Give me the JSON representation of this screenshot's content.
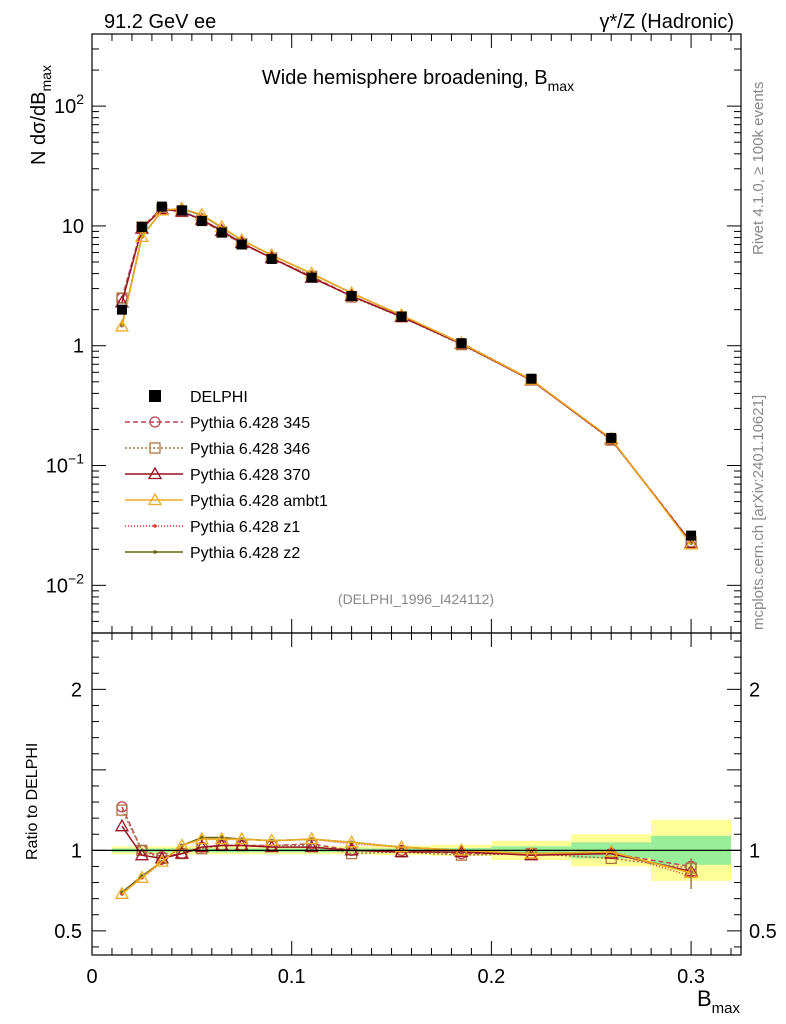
{
  "header": {
    "left": "91.2 GeV ee",
    "right": "γ*/Z (Hadronic)"
  },
  "side_labels": {
    "rivet": "Rivet 4.1.0, ≥ 100k events",
    "mcplots": "mcplots.cern.ch [arXiv:2401.10621]"
  },
  "chart_data": [
    {
      "type": "line",
      "title": "Wide hemisphere broadening, B",
      "title_sub": "max",
      "ylabel": "N  dσ/dB",
      "ylabel_sub": "max",
      "yscale": "log",
      "xlim": [
        0,
        0.325
      ],
      "ylim": [
        0.004,
        400
      ],
      "y_ticks": [
        {
          "v": 0.01,
          "base": "10",
          "exp": "−2"
        },
        {
          "v": 0.1,
          "base": "10",
          "exp": "−1"
        },
        {
          "v": 1,
          "base": "1",
          "exp": ""
        },
        {
          "v": 10,
          "base": "10",
          "exp": ""
        },
        {
          "v": 100,
          "base": "10",
          "exp": "2"
        }
      ],
      "watermark": "(DELPHI_1996_I424112)",
      "legend": [
        "DELPHI",
        "Pythia 6.428 345",
        "Pythia 6.428 346",
        "Pythia 6.428 370",
        "Pythia 6.428 ambt1",
        "Pythia 6.428 z1",
        "Pythia 6.428 z2"
      ],
      "x": [
        0.015,
        0.025,
        0.035,
        0.045,
        0.055,
        0.065,
        0.075,
        0.09,
        0.11,
        0.13,
        0.155,
        0.185,
        0.22,
        0.26,
        0.3
      ],
      "data": {
        "name": "DELPHI",
        "values": [
          2.0,
          9.8,
          14.5,
          13.5,
          11.0,
          8.8,
          7.0,
          5.3,
          3.7,
          2.6,
          1.75,
          1.05,
          0.53,
          0.17,
          0.026
        ]
      },
      "series": [
        {
          "name": "Pythia 6.428 345",
          "values": [
            2.5,
            9.8,
            14.0,
            13.3,
            11.2,
            8.9,
            7.1,
            5.4,
            3.8,
            2.6,
            1.75,
            1.03,
            0.52,
            0.166,
            0.023
          ]
        },
        {
          "name": "Pythia 6.428 346",
          "values": [
            2.5,
            9.8,
            13.8,
            13.2,
            11.1,
            8.9,
            7.1,
            5.4,
            3.8,
            2.55,
            1.74,
            1.02,
            0.52,
            0.163,
            0.023
          ]
        },
        {
          "name": "Pythia 6.428 370",
          "values": [
            2.3,
            9.5,
            13.8,
            13.2,
            11.3,
            9.1,
            7.2,
            5.4,
            3.7,
            2.6,
            1.74,
            1.04,
            0.515,
            0.166,
            0.0225
          ]
        },
        {
          "name": "Pythia 6.428 ambt1",
          "values": [
            1.45,
            8.1,
            13.5,
            14.0,
            12.4,
            9.8,
            7.6,
            5.7,
            4.0,
            2.75,
            1.8,
            1.05,
            0.52,
            0.168,
            0.022
          ]
        },
        {
          "name": "Pythia 6.428 z1",
          "values": [
            1.47,
            8.1,
            13.3,
            13.9,
            12.3,
            9.7,
            7.6,
            5.7,
            4.0,
            2.75,
            1.79,
            1.06,
            0.52,
            0.165,
            0.0225
          ]
        },
        {
          "name": "Pythia 6.428 z2",
          "values": [
            1.48,
            8.2,
            13.4,
            13.9,
            12.3,
            9.7,
            7.6,
            5.7,
            4.0,
            2.75,
            1.79,
            1.05,
            0.52,
            0.166,
            0.0225
          ]
        }
      ]
    },
    {
      "type": "line",
      "ylabel": "Ratio to DELPHI",
      "ylim": [
        0.35,
        2.35
      ],
      "xlabel": "B",
      "xlabel_sub": "max",
      "x_ticks": [
        {
          "v": 0,
          "label": "0"
        },
        {
          "v": 0.1,
          "label": "0.1"
        },
        {
          "v": 0.2,
          "label": "0.2"
        },
        {
          "v": 0.3,
          "label": "0.3"
        }
      ],
      "y_ticks": [
        {
          "v": 0.5,
          "label": "0.5"
        },
        {
          "v": 1,
          "label": "1"
        },
        {
          "v": 2,
          "label": "2"
        }
      ],
      "bands": [
        {
          "x0": 0.01,
          "x1": 0.02,
          "inner": 0.012,
          "outer": 0.025
        },
        {
          "x0": 0.02,
          "x1": 0.03,
          "inner": 0.012,
          "outer": 0.025
        },
        {
          "x0": 0.03,
          "x1": 0.04,
          "inner": 0.012,
          "outer": 0.025
        },
        {
          "x0": 0.04,
          "x1": 0.05,
          "inner": 0.012,
          "outer": 0.025
        },
        {
          "x0": 0.05,
          "x1": 0.06,
          "inner": 0.012,
          "outer": 0.025
        },
        {
          "x0": 0.06,
          "x1": 0.07,
          "inner": 0.012,
          "outer": 0.025
        },
        {
          "x0": 0.07,
          "x1": 0.08,
          "inner": 0.012,
          "outer": 0.025
        },
        {
          "x0": 0.08,
          "x1": 0.1,
          "inner": 0.012,
          "outer": 0.025
        },
        {
          "x0": 0.1,
          "x1": 0.12,
          "inner": 0.012,
          "outer": 0.025
        },
        {
          "x0": 0.12,
          "x1": 0.14,
          "inner": 0.012,
          "outer": 0.025
        },
        {
          "x0": 0.14,
          "x1": 0.17,
          "inner": 0.012,
          "outer": 0.03
        },
        {
          "x0": 0.17,
          "x1": 0.2,
          "inner": 0.015,
          "outer": 0.035
        },
        {
          "x0": 0.2,
          "x1": 0.24,
          "inner": 0.025,
          "outer": 0.06
        },
        {
          "x0": 0.24,
          "x1": 0.28,
          "inner": 0.05,
          "outer": 0.1
        },
        {
          "x0": 0.28,
          "x1": 0.32,
          "inner": 0.09,
          "outer": 0.19
        }
      ],
      "series": [
        {
          "name": "Pythia 6.428 345",
          "values": [
            1.27,
            1.0,
            0.96,
            0.98,
            1.02,
            1.03,
            1.03,
            1.03,
            1.04,
            1.0,
            1.0,
            0.98,
            0.98,
            0.98,
            0.9
          ]
        },
        {
          "name": "Pythia 6.428 346",
          "values": [
            1.25,
            1.0,
            0.95,
            0.98,
            1.01,
            1.03,
            1.03,
            1.03,
            1.03,
            0.98,
            0.99,
            0.97,
            0.98,
            0.95,
            0.89
          ]
        },
        {
          "name": "Pythia 6.428 370",
          "values": [
            1.15,
            0.97,
            0.95,
            0.98,
            1.02,
            1.03,
            1.03,
            1.02,
            1.02,
            1.0,
            0.99,
            0.99,
            0.97,
            0.98,
            0.87
          ]
        },
        {
          "name": "Pythia 6.428 ambt1",
          "values": [
            0.73,
            0.83,
            0.93,
            1.03,
            1.07,
            1.07,
            1.07,
            1.06,
            1.07,
            1.05,
            1.02,
            1.0,
            0.98,
            0.99,
            0.86
          ]
        },
        {
          "name": "Pythia 6.428 z1",
          "values": [
            0.73,
            0.83,
            0.92,
            1.03,
            1.07,
            1.08,
            1.07,
            1.06,
            1.07,
            1.04,
            1.02,
            1.0,
            0.98,
            0.99,
            0.84
          ]
        },
        {
          "name": "Pythia 6.428 z2",
          "values": [
            0.74,
            0.84,
            0.93,
            1.03,
            1.08,
            1.08,
            1.07,
            1.06,
            1.07,
            1.05,
            1.02,
            1.0,
            0.98,
            0.99,
            0.86
          ]
        }
      ]
    }
  ],
  "style": {
    "data_color": "#000000",
    "band_inner": "#99ee99",
    "band_outer": "#ffff99",
    "series_colors": [
      "#bb4455",
      "#aa7744",
      "#991122",
      "#eeaa22",
      "#dd3322",
      "#666611"
    ],
    "series_dash": [
      "5,3",
      "2,2",
      "",
      "",
      "1,2",
      ""
    ],
    "series_markers": [
      "circle",
      "square",
      "triangle",
      "triangle",
      "dot",
      "dot"
    ]
  }
}
